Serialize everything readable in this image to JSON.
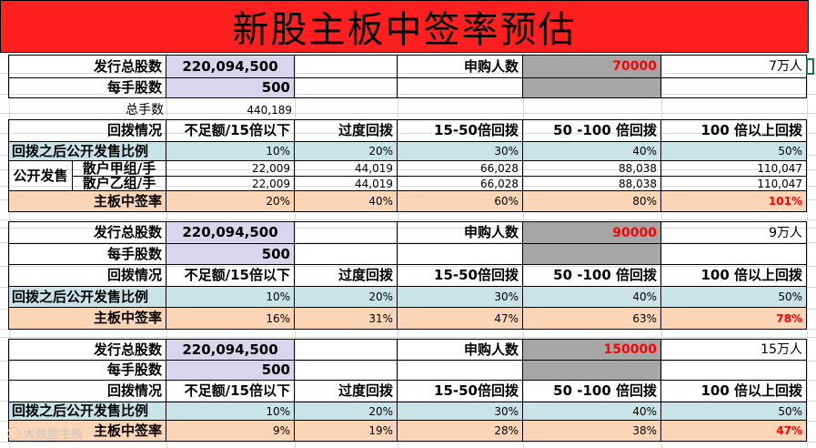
{
  "title": "新股主板中签率预估",
  "labels": {
    "total_shares": "发行总股数",
    "lot_size": "每手股数",
    "total_lots": "总手数",
    "clawback": "回拨情况",
    "public_ratio": "回拨之后公开发售比例",
    "public_offer": "公开发售",
    "group_a": "散户甲组/手",
    "group_b": "散户乙组/手",
    "win_rate": "主板中签率",
    "applicants": "申购人数"
  },
  "headers": [
    "不足额/15倍以下",
    "过度回拨",
    "15-50倍回拨",
    "50 -100 倍回拨",
    "100 倍以上回拨"
  ],
  "ratios": [
    "10%",
    "20%",
    "30%",
    "40%",
    "50%"
  ],
  "blocks": [
    {
      "total_shares": "220,094,500",
      "lot_size": "500",
      "total_lots": "440,189",
      "applicants": "70000",
      "applicants_text": "7万人",
      "group_a": [
        "22,009",
        "44,019",
        "66,028",
        "88,038",
        "110,047"
      ],
      "group_b": [
        "22,009",
        "44,019",
        "66,028",
        "88,038",
        "110,047"
      ],
      "rates": [
        "20%",
        "40%",
        "60%",
        "80%",
        "101%"
      ]
    },
    {
      "total_shares": "220,094,500",
      "lot_size": "500",
      "applicants": "90000",
      "applicants_text": "9万人",
      "rates": [
        "16%",
        "31%",
        "47%",
        "63%",
        "78%"
      ]
    },
    {
      "total_shares": "220,094,500",
      "lot_size": "500",
      "applicants": "150000",
      "applicants_text": "15万人",
      "rates": [
        "9%",
        "19%",
        "28%",
        "38%",
        "47%"
      ]
    }
  ],
  "watermark": "大数据主板",
  "colors": {
    "title_bg": "#ff1f1f",
    "lavender": "#d9d5ec",
    "gray": "#a6a6a6",
    "teal": "#c9e3e6",
    "peach": "#fbd5b5",
    "highlight": "#ff0000"
  }
}
